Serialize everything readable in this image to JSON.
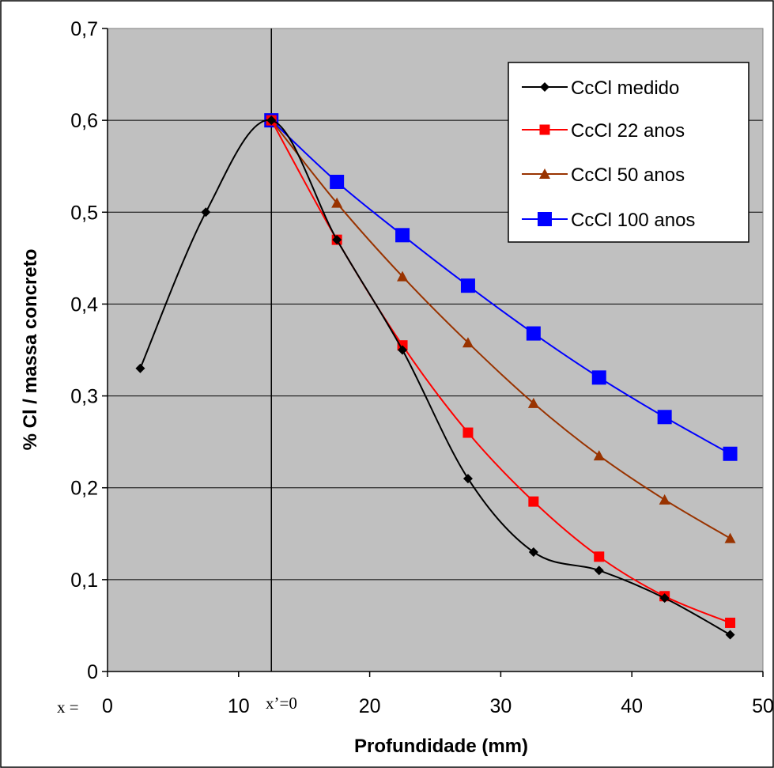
{
  "chart_data": {
    "type": "line",
    "title": "",
    "xlabel": "Profundidade (mm)",
    "ylabel": "% Cl / massa concreto",
    "xlim": [
      0,
      50
    ],
    "ylim": [
      0,
      0.7
    ],
    "x_ticks": [
      0,
      10,
      20,
      30,
      40,
      50
    ],
    "x_tick_labels": [
      "0",
      "10",
      "20",
      "30",
      "40",
      "50"
    ],
    "y_ticks": [
      0,
      0.1,
      0.2,
      0.3,
      0.4,
      0.5,
      0.6,
      0.7
    ],
    "y_tick_labels": [
      "0",
      "0,1",
      "0,2",
      "0,3",
      "0,4",
      "0,5",
      "0,6",
      "0,7"
    ],
    "grid": "horizontal",
    "plot_background": "#c0c0c0",
    "legend_position": "top-right",
    "annotations": {
      "x_origin_label": "x =",
      "x_prime_label": "x’=0",
      "x_prime_line_x": 12.5
    },
    "series": [
      {
        "name": "CcCl medido",
        "color": "#000000",
        "marker": "diamond",
        "x": [
          2.5,
          7.5,
          12.5,
          17.5,
          22.5,
          27.5,
          32.5,
          37.5,
          42.5,
          47.5
        ],
        "y": [
          0.33,
          0.5,
          0.6,
          0.47,
          0.35,
          0.21,
          0.13,
          0.11,
          0.08,
          0.04
        ]
      },
      {
        "name": "CcCl 22 anos",
        "color": "#ff0000",
        "marker": "square",
        "x": [
          12.5,
          17.5,
          22.5,
          27.5,
          32.5,
          37.5,
          42.5,
          47.5
        ],
        "y": [
          0.6,
          0.47,
          0.355,
          0.26,
          0.185,
          0.125,
          0.082,
          0.053
        ]
      },
      {
        "name": "CcCl 50 anos",
        "color": "#993300",
        "marker": "triangle",
        "x": [
          12.5,
          17.5,
          22.5,
          27.5,
          32.5,
          37.5,
          42.5,
          47.5
        ],
        "y": [
          0.6,
          0.51,
          0.43,
          0.358,
          0.292,
          0.235,
          0.187,
          0.145
        ]
      },
      {
        "name": "CcCl 100 anos",
        "color": "#0000ff",
        "marker": "bigsquare",
        "x": [
          12.5,
          17.5,
          22.5,
          27.5,
          32.5,
          37.5,
          42.5,
          47.5
        ],
        "y": [
          0.6,
          0.533,
          0.475,
          0.42,
          0.368,
          0.32,
          0.277,
          0.237
        ]
      }
    ]
  }
}
